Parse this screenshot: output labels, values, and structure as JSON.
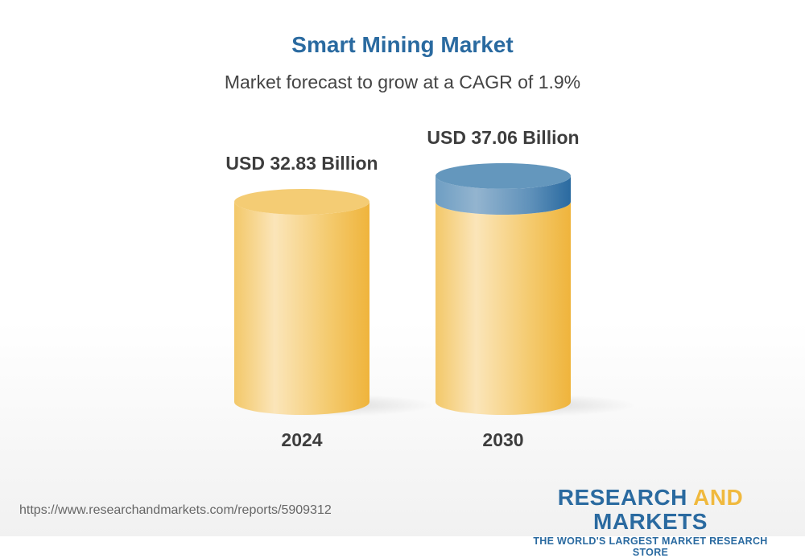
{
  "header": {
    "title": "Smart Mining Market",
    "subtitle": "Market forecast to grow at a CAGR of 1.9%"
  },
  "chart_data": {
    "type": "bar",
    "style": "3d-cylinder",
    "categories": [
      "2024",
      "2030"
    ],
    "values": [
      32.83,
      37.06
    ],
    "data_labels": [
      "USD 32.83 Billion",
      "USD 37.06 Billion"
    ],
    "unit": "USD Billion",
    "title": "Smart Mining Market",
    "subtitle": "Market forecast to grow at a CAGR of 1.9%",
    "grid": false,
    "colors": {
      "base": "#f2be4e",
      "growth": "#2a6aa0"
    }
  },
  "footer": {
    "url": "https://www.researchandmarkets.com/reports/5909312",
    "logo_part1": "RESEARCH ",
    "logo_part2": "AND",
    "logo_part3": " MARKETS",
    "logo_tagline": "THE WORLD'S LARGEST MARKET RESEARCH STORE"
  }
}
